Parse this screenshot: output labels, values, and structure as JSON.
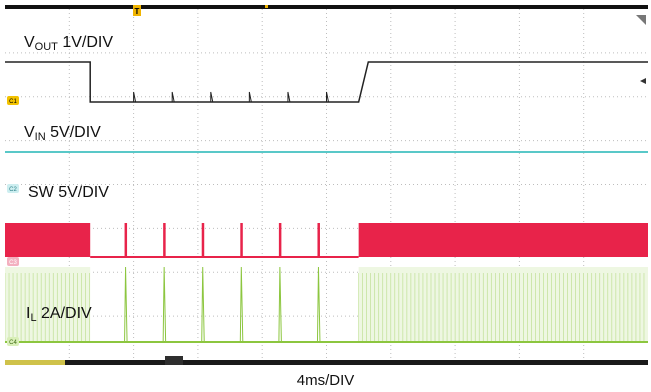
{
  "chart_data": {
    "type": "line",
    "title": "",
    "xlabel": "4ms/DIV",
    "time_per_div_ms": 4,
    "x_divisions": 10,
    "y_divisions": 8,
    "grid": true,
    "trigger_marker": "T",
    "channels": [
      {
        "id": "C1",
        "name_main": "V",
        "name_sub": "OUT",
        "scale": "1V/DIV",
        "color": "#222222",
        "marker_label": "C1",
        "high_ms": [
          0,
          5.3,
          22.0,
          40
        ],
        "low_ms": [
          5.3,
          22.0
        ],
        "rise_ms": [
          22.0,
          22.6
        ],
        "pulses_ms": [
          8.0,
          10.4,
          12.8,
          15.2,
          17.6,
          20.0
        ]
      },
      {
        "id": "C2",
        "name_main": "V",
        "name_sub": "IN",
        "scale": "5V/DIV",
        "color": "#22b5b5",
        "marker_label": "C2",
        "level": "constant"
      },
      {
        "id": "C3",
        "name_main": "SW",
        "name_sub": "",
        "scale": "5V/DIV",
        "color": "#e8234a",
        "marker_label": "C3",
        "switching_ms": [
          [
            0,
            5.3
          ],
          [
            22.0,
            40
          ]
        ],
        "pulses_ms": [
          7.5,
          9.9,
          12.3,
          14.7,
          17.1,
          19.5
        ]
      },
      {
        "id": "C4",
        "name_main": "I",
        "name_sub": "L",
        "scale": "2A/DIV",
        "color": "#8cc63f",
        "marker_label": "C4",
        "switching_ms": [
          [
            0,
            5.3
          ],
          [
            22.0,
            40
          ]
        ],
        "pulses_ms": [
          7.5,
          9.9,
          12.3,
          14.7,
          17.1,
          19.5
        ]
      }
    ]
  }
}
